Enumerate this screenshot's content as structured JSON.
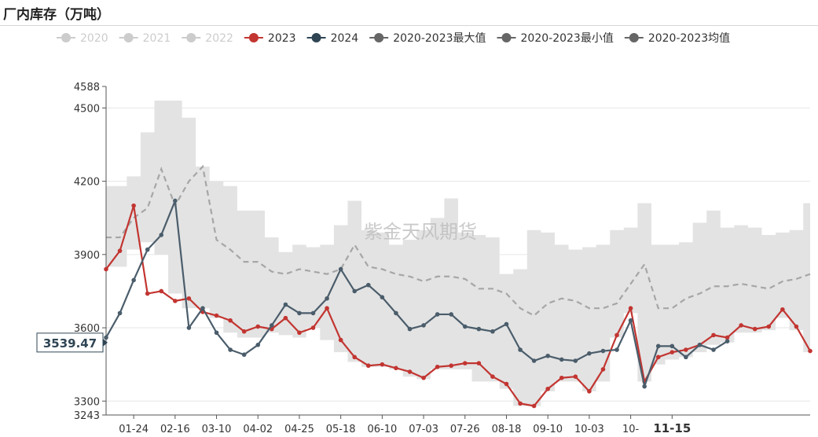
{
  "page_title": "厂内库存（万吨）",
  "chart_data": {
    "type": "line",
    "title": "厂内库存（万吨）",
    "watermark": "紫金天风期货",
    "ylim": [
      3243,
      4588
    ],
    "yticks": [
      3300,
      3600,
      3900,
      4200,
      4500
    ],
    "yticks_extra": [
      3243,
      4588
    ],
    "tooltip_value": "3539.47",
    "xticks": [
      {
        "i": 2,
        "label": "01-24"
      },
      {
        "i": 5,
        "label": "02-16"
      },
      {
        "i": 8,
        "label": "03-10"
      },
      {
        "i": 11,
        "label": "04-02"
      },
      {
        "i": 14,
        "label": "04-25"
      },
      {
        "i": 17,
        "label": "05-18"
      },
      {
        "i": 20,
        "label": "06-10"
      },
      {
        "i": 23,
        "label": "07-03"
      },
      {
        "i": 26,
        "label": "07-26"
      },
      {
        "i": 29,
        "label": "08-18"
      },
      {
        "i": 32,
        "label": "09-10"
      },
      {
        "i": 35,
        "label": "10-03"
      },
      {
        "i": 38,
        "label": "10-"
      },
      {
        "i": 41,
        "label": "11-15",
        "bold": true
      }
    ],
    "legend": [
      {
        "name": "2020",
        "color": "#cccccc",
        "active": false
      },
      {
        "name": "2021",
        "color": "#cccccc",
        "active": false
      },
      {
        "name": "2022",
        "color": "#cccccc",
        "active": false
      },
      {
        "name": "2023",
        "color": "#c23531",
        "active": true
      },
      {
        "name": "2024",
        "color": "#2f4554",
        "active": true
      },
      {
        "name": "2020-2023最大值",
        "color": "#666666",
        "active": true
      },
      {
        "name": "2020-2023最小值",
        "color": "#666666",
        "active": true
      },
      {
        "name": "2020-2023均值",
        "color": "#666666",
        "active": true
      }
    ],
    "colors": {
      "y2023": "#c23531",
      "y2024": "#4b5d6b",
      "band": "#e3e3e3",
      "mean": "#a6a6a6",
      "grid": "#e6e6e6",
      "axis": "#555555"
    },
    "n_points": 52,
    "series": [
      {
        "name": "2023",
        "values": [
          3840,
          3915,
          4100,
          3740,
          3750,
          3710,
          3720,
          3665,
          3650,
          3630,
          3585,
          3605,
          3595,
          3640,
          3580,
          3600,
          3680,
          3550,
          3480,
          3445,
          3450,
          3435,
          3420,
          3395,
          3440,
          3445,
          3455,
          3455,
          3400,
          3370,
          3290,
          3280,
          3350,
          3395,
          3400,
          3340,
          3430,
          3570,
          3680,
          3380,
          3480,
          3500,
          3510,
          3530,
          3570,
          3560,
          3610,
          3595,
          3605,
          3675,
          3605,
          3505
        ]
      },
      {
        "name": "2024",
        "values": [
          3560,
          3660,
          3795,
          3920,
          3980,
          4120,
          3600,
          3680,
          3580,
          3510,
          3490,
          3530,
          3610,
          3695,
          3660,
          3660,
          3720,
          3840,
          3750,
          3775,
          3725,
          3660,
          3595,
          3610,
          3655,
          3655,
          3605,
          3595,
          3585,
          3615,
          3510,
          3465,
          3485,
          3470,
          3465,
          3495,
          3505,
          3510,
          3630,
          3360,
          3525,
          3525,
          3480,
          3530,
          3510,
          3545
        ]
      },
      {
        "name": "2020-2023最大值",
        "values": [
          4180,
          4180,
          4220,
          4400,
          4530,
          4530,
          4460,
          4260,
          4200,
          4180,
          4080,
          4080,
          3970,
          3910,
          3940,
          3930,
          3940,
          4020,
          4120,
          4000,
          3990,
          3940,
          3960,
          4000,
          4050,
          4130,
          3990,
          3980,
          3970,
          3820,
          3840,
          4000,
          3990,
          3940,
          3920,
          3930,
          3940,
          4000,
          4010,
          4110,
          3940,
          3940,
          3950,
          4030,
          4080,
          4010,
          4020,
          4010,
          3980,
          3990,
          4000,
          4110
        ]
      },
      {
        "name": "2020-2023最小值",
        "values": [
          3850,
          3850,
          3920,
          3950,
          3900,
          3740,
          3680,
          3680,
          3640,
          3580,
          3560,
          3560,
          3580,
          3570,
          3560,
          3600,
          3550,
          3500,
          3460,
          3440,
          3440,
          3430,
          3400,
          3390,
          3430,
          3430,
          3430,
          3380,
          3380,
          3350,
          3280,
          3280,
          3340,
          3380,
          3380,
          3340,
          3380,
          3560,
          3660,
          3380,
          3450,
          3470,
          3480,
          3500,
          3530,
          3540,
          3580,
          3580,
          3590,
          3640,
          3590,
          3500
        ]
      },
      {
        "name": "2020-2023均值",
        "values": [
          3970,
          3970,
          4050,
          4090,
          4250,
          4100,
          4200,
          4260,
          3960,
          3920,
          3870,
          3870,
          3830,
          3820,
          3840,
          3830,
          3820,
          3840,
          3940,
          3850,
          3840,
          3820,
          3810,
          3790,
          3810,
          3810,
          3800,
          3760,
          3760,
          3740,
          3680,
          3650,
          3700,
          3720,
          3710,
          3680,
          3680,
          3700,
          3780,
          3860,
          3680,
          3680,
          3720,
          3740,
          3770,
          3770,
          3780,
          3770,
          3760,
          3790,
          3800,
          3820
        ]
      }
    ]
  }
}
